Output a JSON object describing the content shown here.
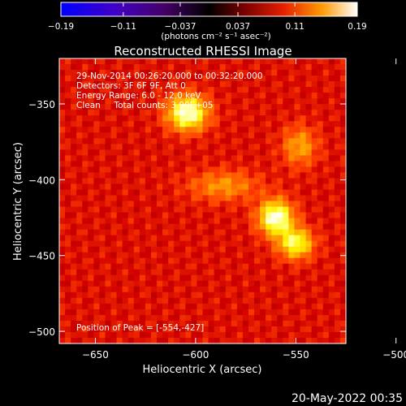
{
  "chart_data": {
    "type": "heatmap",
    "title": "Reconstructed RHESSI Image",
    "xlabel": "Heliocentric X (arcsec)",
    "ylabel": "Heliocentric Y (arcsec)",
    "xlim": [
      -668,
      -525
    ],
    "ylim": [
      -508,
      -320
    ],
    "x_ticks": [
      -650,
      -600,
      -550,
      -500
    ],
    "y_ticks": [
      -350,
      -400,
      -450,
      -500
    ],
    "x_tick_labels": [
      "−650",
      "−600",
      "−550",
      "−500"
    ],
    "y_tick_labels": [
      "−350",
      "−400",
      "−450",
      "−500"
    ],
    "colorbar": {
      "min": -0.19,
      "max": 0.19,
      "tick_values": [
        -0.19,
        -0.11,
        -0.037,
        0.037,
        0.11,
        0.19
      ],
      "tick_labels": [
        "−0.19",
        "−0.11",
        "−0.037",
        "0.037",
        "0.11",
        "0.19"
      ],
      "unit_label": "(photons cm⁻² s⁻¹ asec⁻²)",
      "colormap": "red temperature"
    },
    "annotations": [
      "29-Nov-2014 00:26:20.000 to 00:32:20.000",
      "Detectors: 3F 6F 9F, Att 0",
      "Energy Range: 6.0 - 12.0 keV",
      "Clean     Total counts: 3.90E+05"
    ],
    "peak_label": "Position of Peak = [-554,-427]",
    "background_level": 0.09,
    "sources": [
      {
        "x": -604,
        "y": -356,
        "sx": 7,
        "sy": 8,
        "peak": 0.19
      },
      {
        "x": -560,
        "y": -425,
        "sx": 6,
        "sy": 8,
        "peak": 0.19
      },
      {
        "x": -550,
        "y": -442,
        "sx": 6,
        "sy": 7,
        "peak": 0.17
      },
      {
        "x": -586,
        "y": -404,
        "sx": 12,
        "sy": 7,
        "peak": 0.13
      },
      {
        "x": -548,
        "y": -378,
        "sx": 6,
        "sy": 9,
        "peak": 0.135
      }
    ]
  },
  "footer": {
    "date": "20-May-2022 00:35"
  },
  "colors": {
    "background": "#000000",
    "text": "#ffffff"
  }
}
